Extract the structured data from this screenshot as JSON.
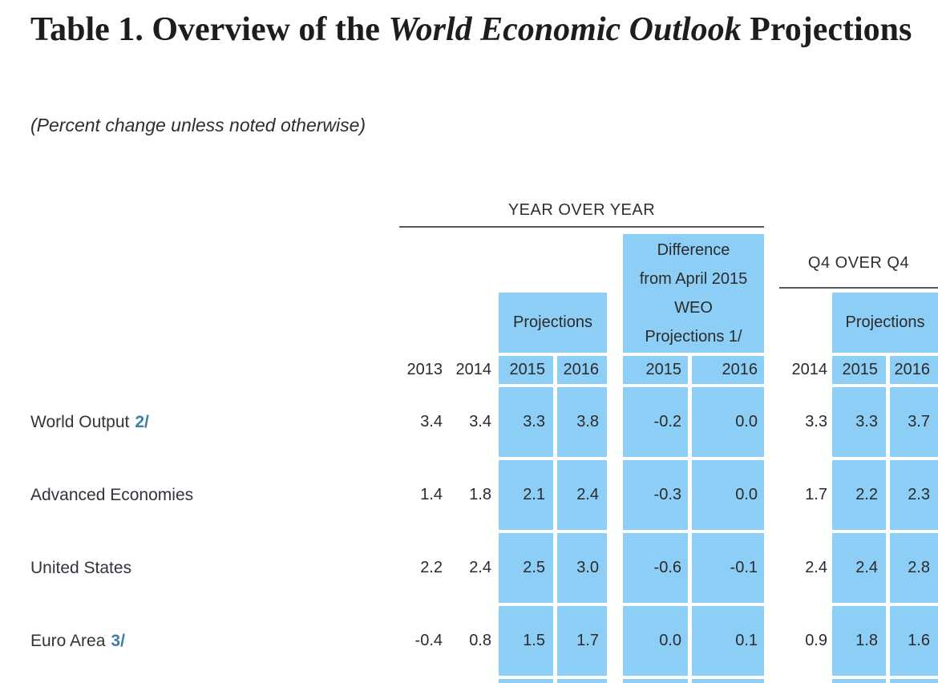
{
  "title": {
    "prefix": "Table 1. Overview of the ",
    "emphasis": "World Economic Outlook",
    "suffix": " Projections"
  },
  "subtitle": "(Percent change unless noted otherwise)",
  "table": {
    "group_yoy": "YEAR OVER YEAR",
    "group_q4": "Q4 OVER Q4",
    "projections_label": "Projections",
    "diff_header_lines": [
      "Difference",
      "from April 2015",
      "WEO",
      "Projections 1/"
    ],
    "year_columns": [
      "2013",
      "2014",
      "2015",
      "2016",
      "2015",
      "2016",
      "2014",
      "2015",
      "2016"
    ],
    "rows": [
      {
        "label": "World Output",
        "footnote": "2/",
        "values": [
          "3.4",
          "3.4",
          "3.3",
          "3.8",
          "-0.2",
          "0.0",
          "3.3",
          "3.3",
          "3.7"
        ]
      },
      {
        "label": "Advanced Economies",
        "footnote": "",
        "values": [
          "1.4",
          "1.8",
          "2.1",
          "2.4",
          "-0.3",
          "0.0",
          "1.7",
          "2.2",
          "2.3"
        ]
      },
      {
        "label": "United States",
        "footnote": "",
        "values": [
          "2.2",
          "2.4",
          "2.5",
          "3.0",
          "-0.6",
          "-0.1",
          "2.4",
          "2.4",
          "2.8"
        ]
      },
      {
        "label": "Euro Area",
        "footnote": "3/",
        "values": [
          "-0.4",
          "0.8",
          "1.5",
          "1.7",
          "0.0",
          "0.1",
          "0.9",
          "1.8",
          "1.6"
        ]
      }
    ]
  },
  "colors": {
    "highlight_blue": "#8DCEF6",
    "footnote_link_blue": "#3D7EA6",
    "text_dark": "#2B2B2B",
    "rule_gray": "#58595B"
  }
}
